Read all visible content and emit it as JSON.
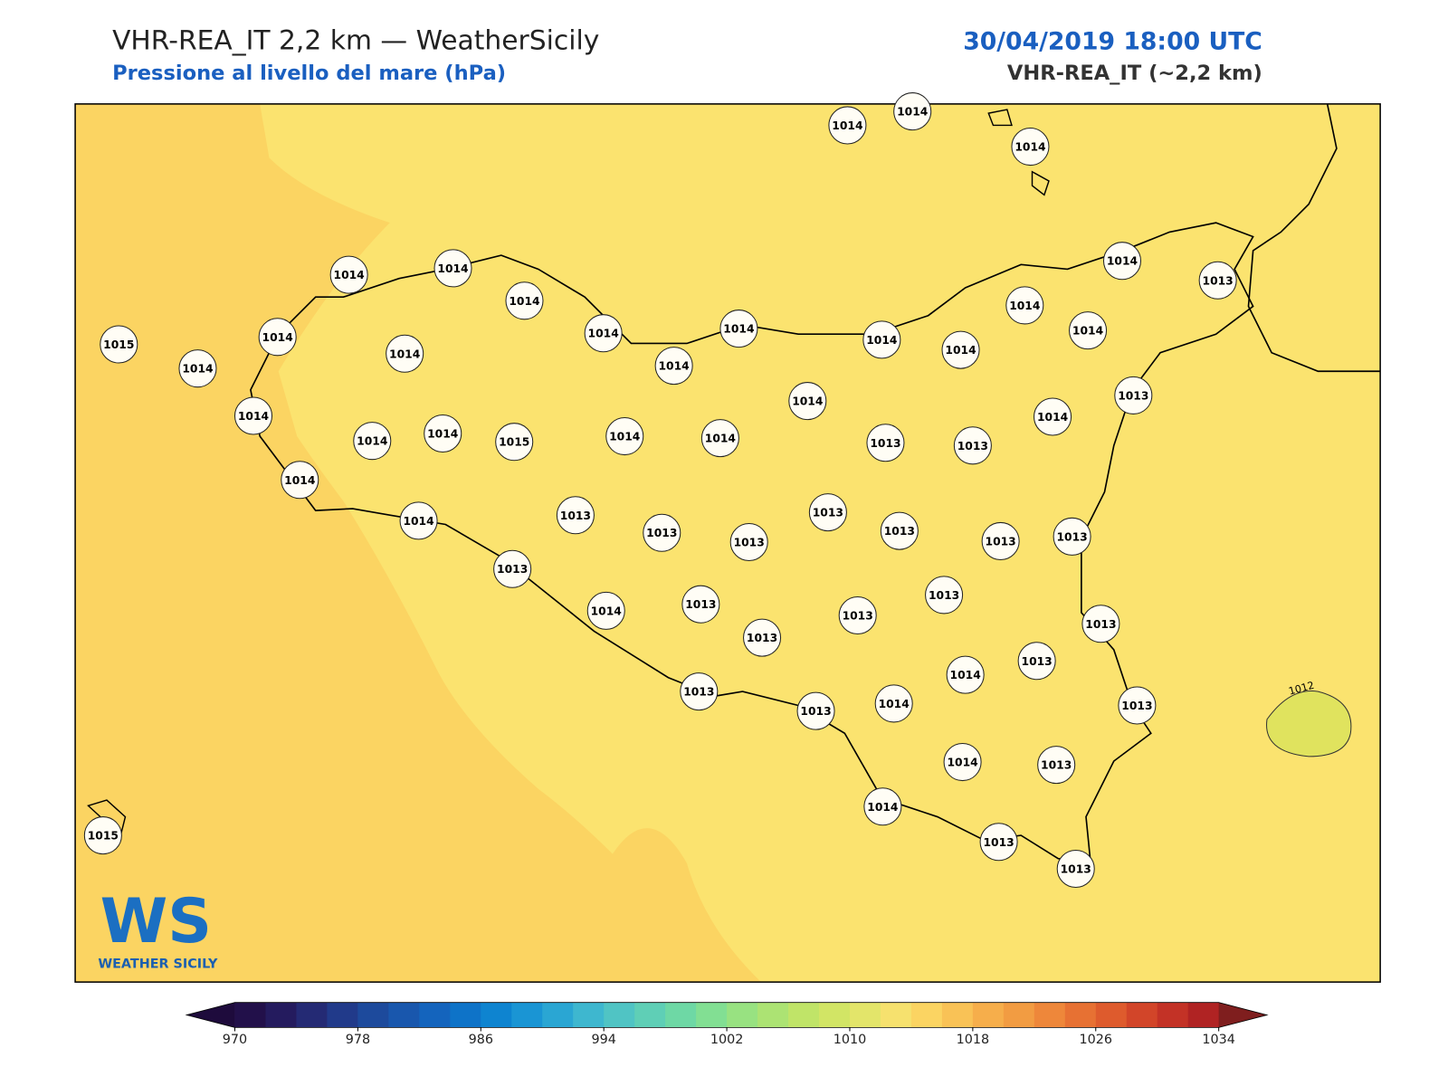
{
  "header": {
    "title": "VHR-REA_IT 2,2 km — WeatherSicily",
    "subtitle": "Pressione al livello del mare (hPa)",
    "datetime": "30/04/2019 18:00 UTC",
    "model": "VHR-REA_IT (~2,2 km)"
  },
  "map": {
    "stations": [
      1014,
      1014,
      1014,
      1014,
      1014,
      1014,
      1014,
      1015,
      1014,
      1014,
      1014,
      1014,
      1014,
      1014,
      1014,
      1014,
      1014,
      1014,
      1013,
      1014,
      1013,
      1014,
      1014,
      1014,
      1015,
      1014,
      1014,
      1013,
      1013,
      1014,
      1014,
      1014,
      1013,
      1013,
      1013,
      1013,
      1013,
      1013,
      1013,
      1013,
      1014,
      1013,
      1013,
      1013,
      1013,
      1013,
      1013,
      1014,
      1013,
      1013,
      1013,
      1014,
      1014,
      1013,
      1014,
      1013,
      1013,
      1015
    ],
    "contour_label": 1012
  },
  "logo": {
    "mark": "WS",
    "text": "WEATHER SICILY"
  },
  "colorbar": {
    "min": 970,
    "max": 1034,
    "ticks": [
      970,
      978,
      986,
      994,
      1002,
      1010,
      1018,
      1026,
      1034
    ],
    "colors": [
      "#22104a",
      "#241b5e",
      "#242a74",
      "#213a8a",
      "#1d4a9c",
      "#1957ad",
      "#1464bd",
      "#0e73c8",
      "#0e84d0",
      "#1a95d4",
      "#2aa6d3",
      "#3eb7cf",
      "#50c4c4",
      "#5fcfb6",
      "#6ed8a5",
      "#82df93",
      "#98e281",
      "#ace373",
      "#c0e468",
      "#d2e565",
      "#e3e56a",
      "#f6e16e",
      "#fbd462",
      "#f9c256",
      "#f6ae4b",
      "#f29c42",
      "#ee873a",
      "#e77133",
      "#de5b2d",
      "#d24529",
      "#c33226",
      "#b02323"
    ],
    "under": "#1e0b3c",
    "over": "#7f1e1e"
  }
}
